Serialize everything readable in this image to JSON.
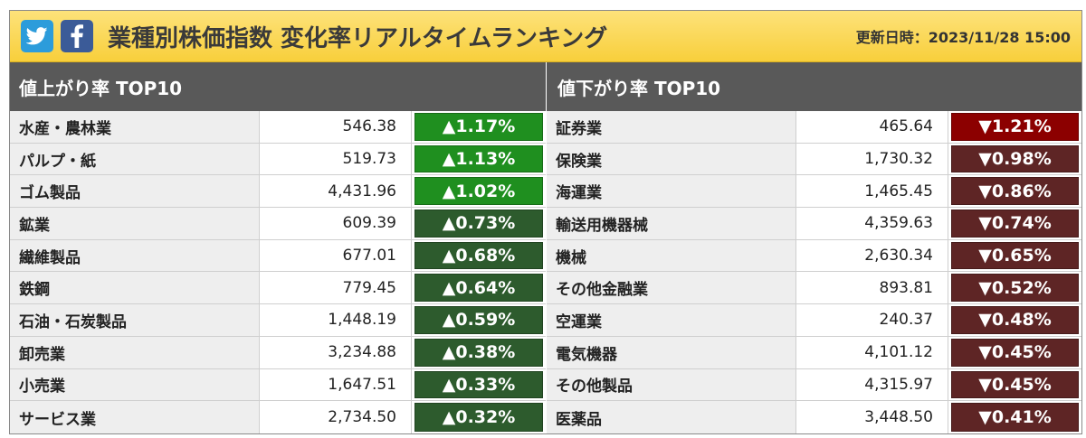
{
  "header": {
    "title": "業種別株価指数 変化率リアルタイムランキング",
    "updated_label": "更新日時：2023/11/28 15:00",
    "social": [
      {
        "icon": "twitter-icon"
      },
      {
        "icon": "facebook-icon"
      }
    ]
  },
  "colors": {
    "up_strong": "#1f8f1f",
    "up_weak": "#2d5b2d",
    "down_strong": "#8c0000",
    "down_weak": "#5e2525",
    "header_bg": "#f8cf3b",
    "panel_head_bg": "#595959"
  },
  "gainers": {
    "heading": "値上がり率 TOP10",
    "rows": [
      {
        "name": "水産・農林業",
        "value": "546.38",
        "change": "▲1.17%"
      },
      {
        "name": "パルプ・紙",
        "value": "519.73",
        "change": "▲1.13%"
      },
      {
        "name": "ゴム製品",
        "value": "4,431.96",
        "change": "▲1.02%"
      },
      {
        "name": "鉱業",
        "value": "609.39",
        "change": "▲0.73%"
      },
      {
        "name": "繊維製品",
        "value": "677.01",
        "change": "▲0.68%"
      },
      {
        "name": "鉄鋼",
        "value": "779.45",
        "change": "▲0.64%"
      },
      {
        "name": "石油・石炭製品",
        "value": "1,448.19",
        "change": "▲0.59%"
      },
      {
        "name": "卸売業",
        "value": "3,234.88",
        "change": "▲0.38%"
      },
      {
        "name": "小売業",
        "value": "1,647.51",
        "change": "▲0.33%"
      },
      {
        "name": "サービス業",
        "value": "2,734.50",
        "change": "▲0.32%"
      }
    ]
  },
  "losers": {
    "heading": "値下がり率 TOP10",
    "rows": [
      {
        "name": "証券業",
        "value": "465.64",
        "change": "▼1.21%"
      },
      {
        "name": "保険業",
        "value": "1,730.32",
        "change": "▼0.98%"
      },
      {
        "name": "海運業",
        "value": "1,465.45",
        "change": "▼0.86%"
      },
      {
        "name": "輸送用機器械",
        "value": "4,359.63",
        "change": "▼0.74%"
      },
      {
        "name": "機械",
        "value": "2,630.34",
        "change": "▼0.65%"
      },
      {
        "name": "その他金融業",
        "value": "893.81",
        "change": "▼0.52%"
      },
      {
        "name": "空運業",
        "value": "240.37",
        "change": "▼0.48%"
      },
      {
        "name": "電気機器",
        "value": "4,101.12",
        "change": "▼0.45%"
      },
      {
        "name": "その他製品",
        "value": "4,315.97",
        "change": "▼0.45%"
      },
      {
        "name": "医薬品",
        "value": "3,448.50",
        "change": "▼0.41%"
      }
    ]
  }
}
